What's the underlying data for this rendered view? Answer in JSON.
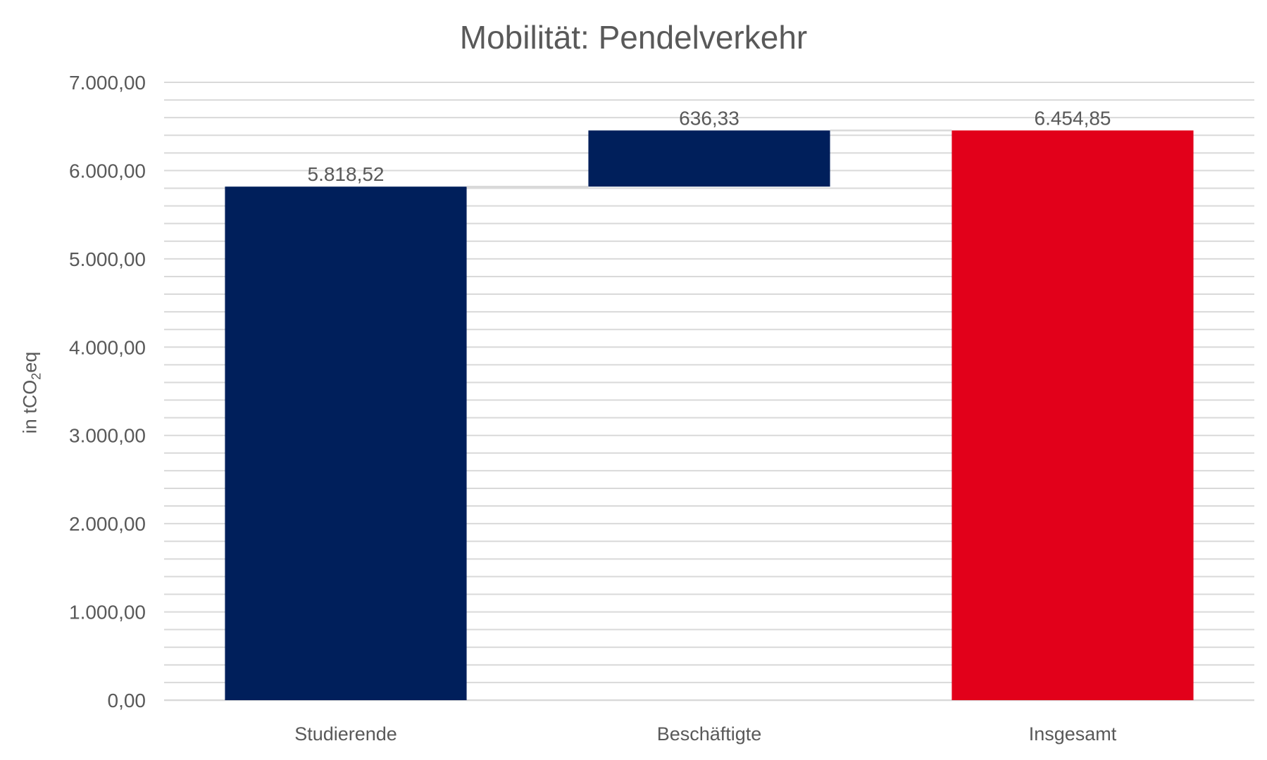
{
  "chart_data": {
    "type": "bar",
    "subtype": "waterfall",
    "title": "Mobilität: Pendelverkehr",
    "ylabel": {
      "prefix": "in tCO",
      "subscript": "2",
      "suffix": "eq"
    },
    "categories": [
      "Studierende",
      "Beschäftigte",
      "Insgesamt"
    ],
    "bars": [
      {
        "category": "Studierende",
        "base": 0,
        "value": 5818.52,
        "label": "5.818,52",
        "color": "#001f5b"
      },
      {
        "category": "Beschäftigte",
        "base": 5818.52,
        "value": 636.33,
        "label": "636,33",
        "color": "#001f5b"
      },
      {
        "category": "Insgesamt",
        "base": 0,
        "value": 6454.85,
        "label": "6.454,85",
        "color": "#e2001a"
      }
    ],
    "ylim": [
      0,
      7000
    ],
    "major_tick_step": 1000,
    "minor_gridline_step": 200,
    "yticks": [
      "0,00",
      "1.000,00",
      "2.000,00",
      "3.000,00",
      "4.000,00",
      "5.000,00",
      "6.000,00",
      "7.000,00"
    ],
    "grid": true,
    "legend": "none",
    "colors": {
      "increase": "#001f5b",
      "total": "#e2001a",
      "grid": "#d9d9d9",
      "connector": "#d9d9d9",
      "text": "#595959"
    }
  }
}
